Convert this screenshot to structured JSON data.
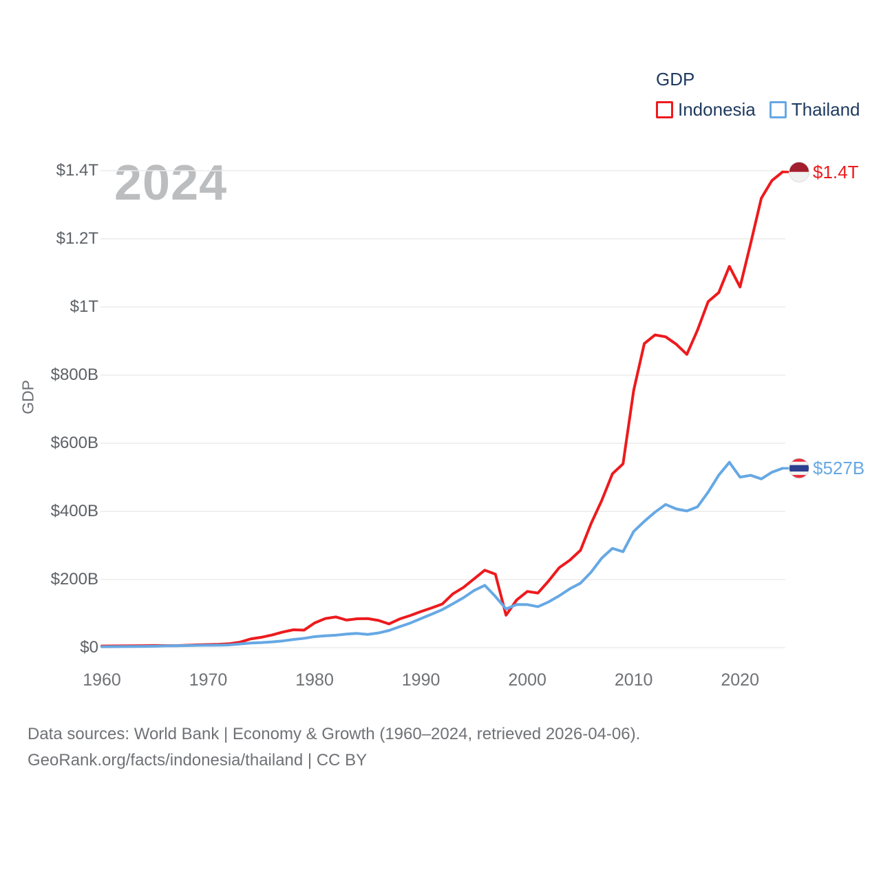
{
  "legend": {
    "title": "GDP",
    "items": [
      {
        "label": "Indonesia",
        "color": "#ed1a1d"
      },
      {
        "label": "Thailand",
        "color": "#66a8e4"
      }
    ]
  },
  "watermark": "2024",
  "footer": {
    "line1": "Data sources: World Bank | Economy & Growth (1960–2024, retrieved 2026-04-06).",
    "line2": "GeoRank.org/facts/indonesia/thailand | CC BY"
  },
  "chart_data": {
    "type": "line",
    "title": "GDP",
    "xlabel": "",
    "ylabel": "GDP",
    "unit": "billion USD",
    "grid": true,
    "legend_position": "top-right",
    "x_range": [
      1960,
      2024
    ],
    "ylim": [
      0,
      1400
    ],
    "xticks": [
      1960,
      1970,
      1980,
      1990,
      2000,
      2010,
      2020
    ],
    "yticks": [
      {
        "value": 0,
        "label": "$0"
      },
      {
        "value": 200,
        "label": "$200B"
      },
      {
        "value": 400,
        "label": "$400B"
      },
      {
        "value": 600,
        "label": "$600B"
      },
      {
        "value": 800,
        "label": "$800B"
      },
      {
        "value": 1000,
        "label": "$1T"
      },
      {
        "value": 1200,
        "label": "$1.2T"
      },
      {
        "value": 1400,
        "label": "$1.4T"
      }
    ],
    "x": [
      1960,
      1961,
      1962,
      1963,
      1964,
      1965,
      1966,
      1967,
      1968,
      1969,
      1970,
      1971,
      1972,
      1973,
      1974,
      1975,
      1976,
      1977,
      1978,
      1979,
      1980,
      1981,
      1982,
      1983,
      1984,
      1985,
      1986,
      1987,
      1988,
      1989,
      1990,
      1991,
      1992,
      1993,
      1994,
      1995,
      1996,
      1997,
      1998,
      1999,
      2000,
      2001,
      2002,
      2003,
      2004,
      2005,
      2006,
      2007,
      2008,
      2009,
      2010,
      2011,
      2012,
      2013,
      2014,
      2015,
      2016,
      2017,
      2018,
      2019,
      2020,
      2021,
      2022,
      2023,
      2024
    ],
    "series": [
      {
        "name": "Indonesia",
        "color": "#ed1a1d",
        "end_label": "$1.4T",
        "flag": "indonesia-flag",
        "values": [
          4.7,
          5.0,
          5.3,
          5.6,
          5.9,
          6.2,
          6.0,
          5.7,
          7.1,
          8.3,
          9.2,
          9.9,
          11.6,
          16.3,
          25.8,
          30.5,
          37.3,
          45.8,
          52.5,
          51.4,
          72.5,
          85.5,
          90.2,
          81.0,
          84.8,
          85.3,
          80.1,
          69.7,
          84.3,
          94.5,
          106.1,
          116.6,
          128.0,
          158.0,
          176.9,
          202.1,
          227.4,
          215.7,
          95.4,
          140.0,
          165.0,
          160.4,
          195.7,
          234.8,
          256.8,
          285.9,
          364.6,
          432.2,
          510.2,
          539.6,
          755.1,
          892.6,
          917.9,
          912.5,
          890.8,
          860.9,
          931.9,
          1015.6,
          1042.3,
          1119.1,
          1058.7,
          1186.5,
          1319.1,
          1371.2,
          1396.3
        ]
      },
      {
        "name": "Thailand",
        "color": "#66a8e4",
        "end_label": "$527B",
        "flag": "thailand-flag",
        "values": [
          2.8,
          3.0,
          3.3,
          3.5,
          3.9,
          4.4,
          5.3,
          5.6,
          6.1,
          6.7,
          7.1,
          7.4,
          8.2,
          10.8,
          13.7,
          14.9,
          17.0,
          19.8,
          24.0,
          27.4,
          32.4,
          34.8,
          36.6,
          40.0,
          41.8,
          38.9,
          43.1,
          50.5,
          61.7,
          72.3,
          85.3,
          98.2,
          111.5,
          128.9,
          146.7,
          167.9,
          183.0,
          150.2,
          113.7,
          126.7,
          126.4,
          120.3,
          134.3,
          152.3,
          172.9,
          189.3,
          221.8,
          262.9,
          291.4,
          281.7,
          341.1,
          370.8,
          397.6,
          420.3,
          407.3,
          401.3,
          413.4,
          456.4,
          506.5,
          544.1,
          500.5,
          505.9,
          495.3,
          515.0,
          526.5
        ]
      }
    ]
  }
}
